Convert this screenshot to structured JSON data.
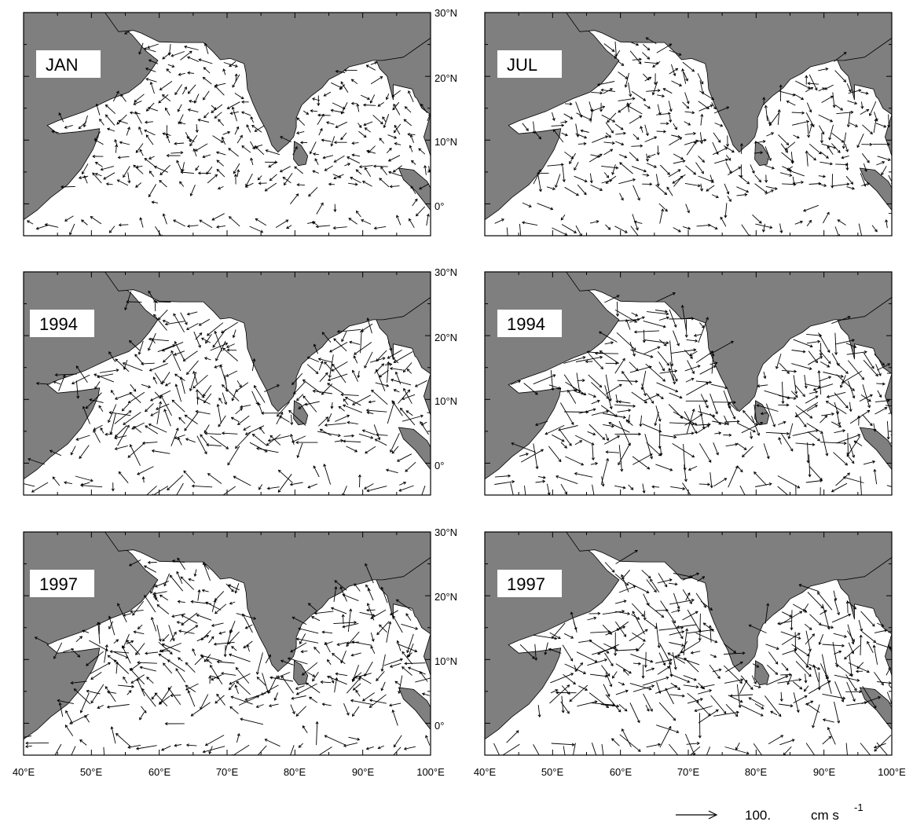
{
  "chart_data": {
    "type": "map",
    "region": "Indian Ocean",
    "lon_ticks": [
      "40°E",
      "50°E",
      "60°E",
      "70°E",
      "80°E",
      "90°E",
      "100°E"
    ],
    "lat_ticks": [
      "30°N",
      "20°N",
      "10°N",
      "0°"
    ],
    "xlim": [
      40,
      100
    ],
    "ylim": [
      -5,
      30
    ],
    "panels": [
      {
        "label": "JAN",
        "month": "JAN"
      },
      {
        "label": "JUL",
        "month": "JUL"
      },
      {
        "label": "1994",
        "month": "JAN"
      },
      {
        "label": "1994",
        "month": "JUL"
      },
      {
        "label": "1997",
        "month": "JAN"
      },
      {
        "label": "1997",
        "month": "JUL"
      }
    ],
    "reference_vector": {
      "value": "100.",
      "unit": "cm s",
      "exponent": "-1"
    },
    "land_color": "#7f7f7f",
    "ocean_color": "#ffffff"
  }
}
